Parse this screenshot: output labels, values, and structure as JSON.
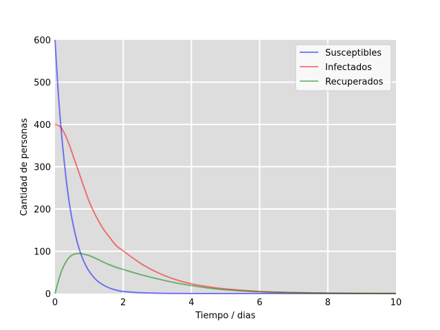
{
  "chart_data": {
    "type": "line",
    "title": "",
    "xlabel": "Tiempo / dias",
    "ylabel": "Cantidad de personas",
    "xlim": [
      0,
      10
    ],
    "ylim": [
      0,
      600
    ],
    "xticks": [
      "0",
      "2",
      "4",
      "6",
      "8",
      "10"
    ],
    "yticks": [
      "0",
      "100",
      "200",
      "300",
      "400",
      "500",
      "600"
    ],
    "grid": true,
    "background": "#dddddd",
    "grid_color": "#ffffff",
    "legend_position": "top-right",
    "x": [
      0,
      0.1,
      0.2,
      0.3,
      0.4,
      0.5,
      0.6,
      0.7,
      0.8,
      0.9,
      1.0,
      1.2,
      1.4,
      1.6,
      1.8,
      2.0,
      2.5,
      3.0,
      3.5,
      4.0,
      4.5,
      5.0,
      6.0,
      7.0,
      8.0,
      9.0,
      10.0
    ],
    "series": [
      {
        "name": "Susceptibles",
        "color": "#0000ff",
        "values": [
          600,
          470,
          370,
          290,
          225,
          176,
          138,
          108,
          85,
          67,
          53,
          33,
          21,
          13,
          8,
          5,
          2,
          0.8,
          0.3,
          0.1,
          0,
          0,
          0,
          0,
          0,
          0,
          0
        ]
      },
      {
        "name": "Infectados",
        "color": "#ff0000",
        "values": [
          400,
          398,
          390,
          375,
          356,
          333,
          310,
          287,
          263,
          240,
          218,
          183,
          155,
          133,
          113,
          101,
          72,
          50,
          34,
          23,
          16,
          11,
          5,
          2.5,
          1,
          0.5,
          0.2
        ]
      },
      {
        "name": "Recuperados",
        "color": "#008000",
        "values": [
          0,
          30,
          55,
          72,
          84,
          91,
          94,
          95,
          94,
          92,
          90,
          83,
          75,
          68,
          62,
          57,
          45,
          35,
          26,
          19,
          13,
          9,
          4,
          2,
          1,
          0.5,
          0.2
        ]
      }
    ]
  }
}
